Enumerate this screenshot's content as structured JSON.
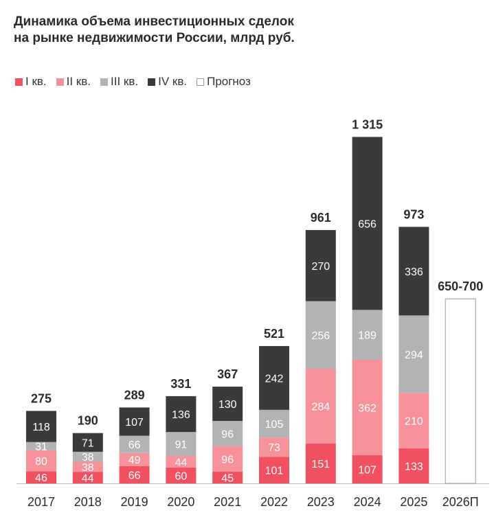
{
  "chart_data": {
    "type": "bar",
    "stacked": true,
    "title_line1": "Динамика объема инвестиционных сделок",
    "title_line2": "на рынке недвижимости России, млрд руб.",
    "categories": [
      "2017",
      "2018",
      "2019",
      "2020",
      "2021",
      "2022",
      "2023",
      "2024",
      "2025",
      "2026П"
    ],
    "series": [
      {
        "name": "I кв.",
        "color": "#f0505f",
        "label_color": "#ffffff",
        "values": [
          46,
          44,
          66,
          60,
          45,
          101,
          151,
          107,
          133,
          null
        ]
      },
      {
        "name": "II кв.",
        "color": "#f7929b",
        "label_color": "#ffffff",
        "values": [
          80,
          38,
          49,
          44,
          96,
          73,
          284,
          362,
          210,
          null
        ]
      },
      {
        "name": "III кв.",
        "color": "#b3b3b5",
        "label_color": "#ffffff",
        "values": [
          31,
          38,
          66,
          91,
          96,
          105,
          256,
          189,
          294,
          null
        ]
      },
      {
        "name": "IV кв.",
        "color": "#3a3a3c",
        "label_color": "#ffffff",
        "values": [
          118,
          71,
          107,
          136,
          130,
          242,
          270,
          656,
          336,
          null
        ]
      }
    ],
    "forecast": {
      "name": "Прогноз",
      "category": "2026П",
      "value": 700,
      "label": "650-700"
    },
    "totals": [
      "275",
      "190",
      "289",
      "331",
      "367",
      "521",
      "961",
      "1 315",
      "973",
      "650-700"
    ],
    "xlabel": "",
    "ylabel": "",
    "ylim": [
      0,
      1315
    ],
    "grid": false,
    "legend_position": "top-left"
  }
}
